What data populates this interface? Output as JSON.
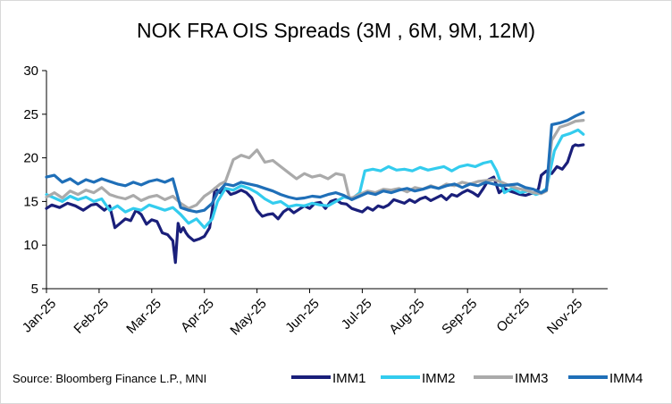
{
  "chart_data": {
    "type": "line",
    "title": "NOK FRA OIS Spreads (3M , 6M, 9M, 12M)",
    "source": "Source: Bloomberg Finance L.P., MNI",
    "xlabel": "",
    "ylabel": "",
    "ylim": [
      5,
      30
    ],
    "yticks": [
      5,
      10,
      15,
      20,
      25,
      30
    ],
    "grid": false,
    "legend_position": "bottom-right",
    "x_tick_labels": [
      "Jan-25",
      "Feb-25",
      "Mar-25",
      "Apr-25",
      "May-25",
      "Jun-25",
      "Jul-25",
      "Aug-25",
      "Sep-25",
      "Oct-25",
      "Nov-25"
    ],
    "x_domain_months": [
      0,
      11
    ],
    "series": [
      {
        "name": "IMM1",
        "color": "#1a1f7a",
        "x": [
          0,
          0.1,
          0.25,
          0.4,
          0.55,
          0.7,
          0.85,
          0.95,
          1.1,
          1.2,
          1.3,
          1.4,
          1.5,
          1.6,
          1.7,
          1.8,
          1.9,
          2.0,
          2.1,
          2.2,
          2.3,
          2.4,
          2.45,
          2.5,
          2.55,
          2.6,
          2.65,
          2.7,
          2.8,
          2.9,
          3.0,
          3.1,
          3.15,
          3.2,
          3.3,
          3.4,
          3.5,
          3.6,
          3.7,
          3.8,
          3.9,
          4.0,
          4.1,
          4.2,
          4.3,
          4.4,
          4.5,
          4.6,
          4.7,
          4.8,
          4.9,
          5.0,
          5.1,
          5.2,
          5.3,
          5.4,
          5.5,
          5.6,
          5.7,
          5.8,
          5.9,
          6.0,
          6.1,
          6.2,
          6.3,
          6.4,
          6.5,
          6.6,
          6.7,
          6.8,
          6.9,
          7.0,
          7.1,
          7.2,
          7.3,
          7.4,
          7.5,
          7.6,
          7.7,
          7.8,
          7.9,
          8.0,
          8.1,
          8.2,
          8.3,
          8.4,
          8.5,
          8.6,
          8.7,
          8.8,
          8.9,
          9.0,
          9.1,
          9.2,
          9.3,
          9.35,
          9.4,
          9.5,
          9.6,
          9.7,
          9.8,
          9.9,
          10.0,
          10.05,
          10.1,
          10.2
        ],
        "values": [
          14.2,
          14.6,
          14.3,
          14.8,
          14.5,
          14.0,
          14.6,
          14.7,
          14.0,
          14.5,
          12.0,
          12.5,
          13.0,
          12.8,
          14.0,
          13.5,
          12.4,
          12.9,
          12.7,
          11.4,
          11.2,
          10.5,
          8.0,
          12.5,
          11.5,
          12.0,
          11.4,
          11.0,
          10.5,
          10.7,
          11.0,
          12.0,
          14.0,
          16.5,
          16.0,
          16.5,
          15.8,
          16.0,
          16.3,
          16.0,
          15.4,
          14.0,
          13.3,
          13.5,
          13.6,
          13.0,
          13.8,
          14.2,
          13.7,
          14.1,
          14.5,
          14.2,
          14.8,
          14.9,
          14.2,
          15.0,
          15.2,
          14.8,
          14.7,
          14.2,
          14.0,
          13.8,
          14.3,
          14.0,
          14.5,
          14.3,
          14.6,
          15.2,
          15.0,
          14.8,
          15.2,
          14.9,
          15.3,
          15.5,
          15.1,
          15.4,
          15.7,
          15.2,
          15.8,
          15.6,
          16.0,
          16.3,
          16.0,
          15.6,
          16.5,
          17.5,
          17.8,
          16.0,
          16.5,
          16.2,
          16.0,
          15.8,
          15.7,
          15.9,
          16.0,
          16.5,
          18.0,
          18.5,
          18.2,
          19.0,
          18.7,
          19.5,
          21.3,
          21.5,
          21.4,
          21.5
        ]
      },
      {
        "name": "IMM2",
        "color": "#33ccee",
        "x": [
          0,
          0.15,
          0.3,
          0.45,
          0.6,
          0.75,
          0.9,
          1.05,
          1.2,
          1.35,
          1.5,
          1.65,
          1.8,
          1.95,
          2.1,
          2.25,
          2.4,
          2.55,
          2.7,
          2.85,
          3.0,
          3.15,
          3.25,
          3.4,
          3.55,
          3.7,
          3.85,
          4.0,
          4.15,
          4.3,
          4.45,
          4.6,
          4.75,
          4.9,
          5.05,
          5.2,
          5.35,
          5.5,
          5.65,
          5.8,
          5.95,
          6.05,
          6.2,
          6.35,
          6.5,
          6.65,
          6.8,
          6.95,
          7.1,
          7.25,
          7.4,
          7.55,
          7.7,
          7.85,
          8.0,
          8.15,
          8.3,
          8.45,
          8.55,
          8.7,
          8.85,
          9.0,
          9.15,
          9.3,
          9.4,
          9.5,
          9.65,
          9.8,
          9.95,
          10.1,
          10.2
        ],
        "values": [
          15.8,
          15.4,
          15.0,
          15.6,
          15.2,
          15.5,
          15.0,
          15.3,
          14.0,
          14.5,
          13.8,
          14.2,
          14.0,
          14.6,
          14.3,
          14.0,
          14.3,
          13.5,
          12.5,
          13.0,
          12.0,
          13.0,
          15.0,
          16.5,
          16.3,
          16.8,
          16.5,
          16.0,
          15.3,
          14.8,
          15.0,
          14.4,
          14.6,
          14.5,
          14.8,
          14.6,
          14.5,
          15.0,
          15.5,
          15.3,
          16.0,
          18.5,
          18.7,
          18.5,
          19.0,
          18.6,
          18.7,
          18.5,
          18.9,
          18.6,
          18.8,
          19.0,
          18.5,
          19.0,
          19.2,
          19.0,
          19.4,
          19.6,
          18.5,
          16.0,
          16.5,
          16.0,
          16.2,
          15.8,
          16.0,
          16.5,
          20.8,
          22.5,
          22.8,
          23.2,
          22.7
        ]
      },
      {
        "name": "IMM3",
        "color": "#aaaaaa",
        "x": [
          0,
          0.15,
          0.3,
          0.45,
          0.6,
          0.75,
          0.9,
          1.05,
          1.2,
          1.35,
          1.5,
          1.65,
          1.8,
          1.95,
          2.1,
          2.25,
          2.4,
          2.55,
          2.7,
          2.85,
          3.0,
          3.1,
          3.2,
          3.3,
          3.4,
          3.55,
          3.7,
          3.85,
          4.0,
          4.15,
          4.3,
          4.45,
          4.6,
          4.75,
          4.9,
          5.05,
          5.2,
          5.35,
          5.5,
          5.65,
          5.75,
          5.8,
          5.95,
          6.1,
          6.25,
          6.4,
          6.55,
          6.7,
          6.85,
          7.0,
          7.15,
          7.3,
          7.45,
          7.6,
          7.75,
          7.9,
          8.05,
          8.2,
          8.35,
          8.5,
          8.65,
          8.8,
          8.95,
          9.1,
          9.25,
          9.4,
          9.5,
          9.6,
          9.75,
          9.9,
          10.05,
          10.2
        ],
        "values": [
          15.5,
          16.0,
          15.4,
          16.2,
          15.8,
          16.3,
          16.0,
          16.6,
          15.8,
          15.5,
          15.3,
          15.7,
          15.1,
          15.5,
          15.7,
          15.2,
          15.6,
          14.8,
          14.2,
          14.6,
          15.6,
          16.0,
          16.5,
          17.0,
          17.3,
          19.8,
          20.3,
          20.0,
          20.9,
          19.5,
          19.7,
          19.0,
          18.3,
          17.6,
          18.2,
          17.8,
          18.0,
          17.6,
          18.2,
          18.0,
          15.5,
          15.4,
          15.8,
          16.2,
          16.0,
          16.4,
          16.3,
          16.5,
          16.1,
          16.6,
          16.4,
          16.8,
          16.5,
          17.0,
          16.8,
          17.2,
          17.0,
          17.3,
          17.4,
          17.5,
          17.2,
          16.8,
          16.5,
          16.3,
          16.0,
          15.9,
          16.2,
          22.0,
          23.5,
          23.8,
          24.2,
          24.3
        ]
      },
      {
        "name": "IMM4",
        "color": "#1f6fb8",
        "x": [
          0,
          0.15,
          0.3,
          0.45,
          0.6,
          0.75,
          0.9,
          1.05,
          1.2,
          1.35,
          1.5,
          1.65,
          1.8,
          1.95,
          2.1,
          2.25,
          2.4,
          2.55,
          2.7,
          2.85,
          3.0,
          3.15,
          3.25,
          3.4,
          3.55,
          3.7,
          3.85,
          4.0,
          4.15,
          4.3,
          4.45,
          4.6,
          4.75,
          4.9,
          5.05,
          5.2,
          5.35,
          5.5,
          5.65,
          5.8,
          5.95,
          6.1,
          6.25,
          6.4,
          6.55,
          6.7,
          6.85,
          7.0,
          7.15,
          7.3,
          7.45,
          7.6,
          7.75,
          7.9,
          8.05,
          8.2,
          8.35,
          8.5,
          8.65,
          8.8,
          8.95,
          9.1,
          9.25,
          9.4,
          9.5,
          9.6,
          9.75,
          9.9,
          10.05,
          10.2
        ],
        "values": [
          17.8,
          18.0,
          17.2,
          17.6,
          17.0,
          17.5,
          17.2,
          17.6,
          17.3,
          17.0,
          16.8,
          17.2,
          16.9,
          17.3,
          17.5,
          17.2,
          17.6,
          14.3,
          14.0,
          13.8,
          14.0,
          14.8,
          16.0,
          17.0,
          16.8,
          17.2,
          17.0,
          16.8,
          16.5,
          16.2,
          15.8,
          15.5,
          15.3,
          15.4,
          15.6,
          15.5,
          15.8,
          16.0,
          15.7,
          15.2,
          15.6,
          16.0,
          15.8,
          16.2,
          16.0,
          16.3,
          16.5,
          16.2,
          16.4,
          16.7,
          16.5,
          16.8,
          17.0,
          16.6,
          17.0,
          16.8,
          17.2,
          17.0,
          16.8,
          16.9,
          17.0,
          16.6,
          16.4,
          16.0,
          16.3,
          23.8,
          24.0,
          24.3,
          24.8,
          25.2
        ]
      }
    ]
  }
}
